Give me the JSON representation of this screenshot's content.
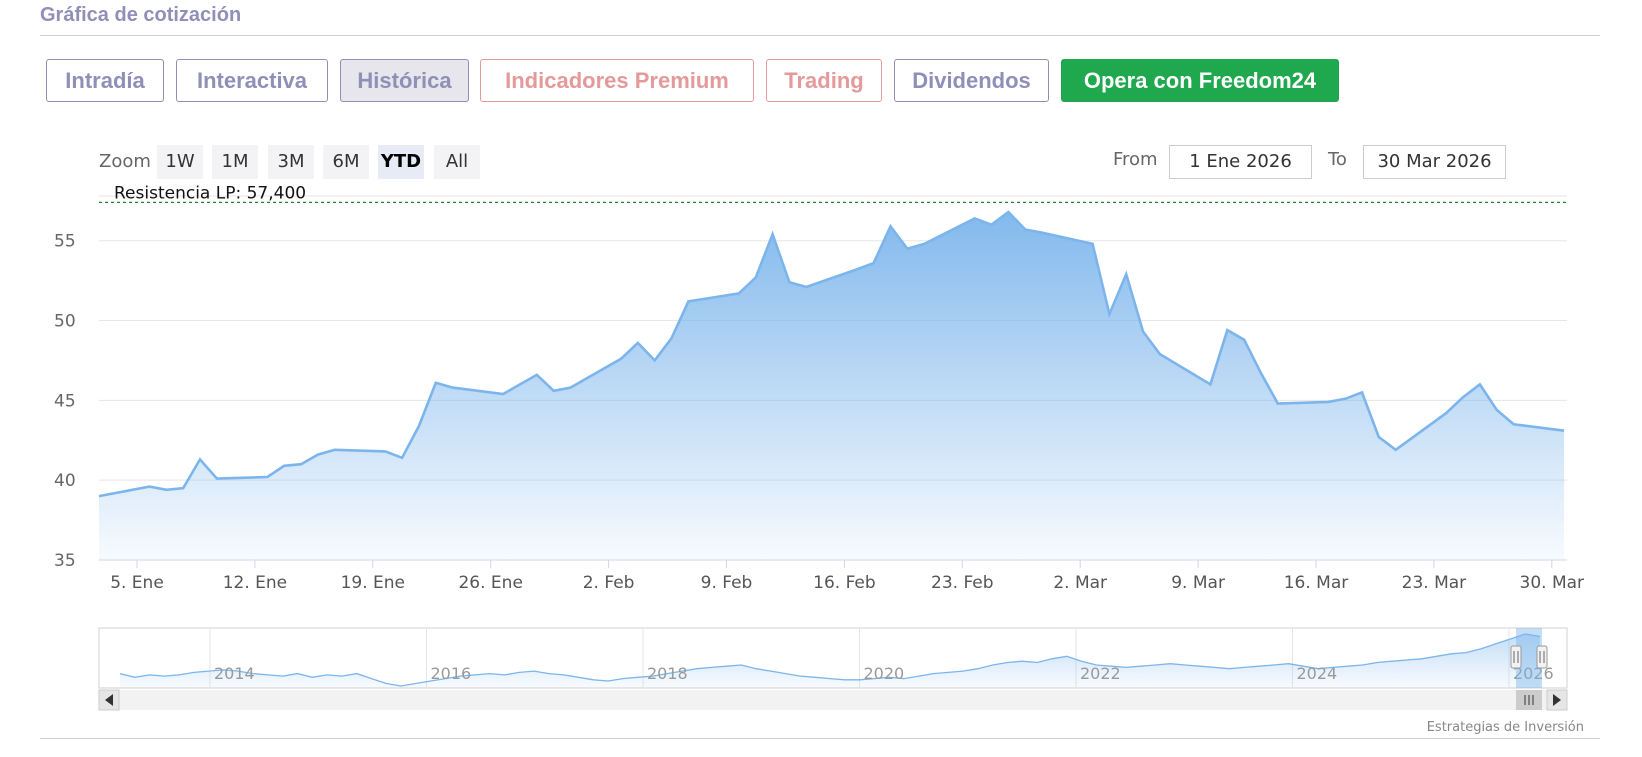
{
  "header": {
    "title": "Gráfica de cotización"
  },
  "tabs": [
    {
      "label": "Intradía",
      "style": "normal"
    },
    {
      "label": "Interactiva",
      "style": "normal"
    },
    {
      "label": "Histórica",
      "style": "active"
    },
    {
      "label": "Indicadores Premium",
      "style": "red"
    },
    {
      "label": "Trading",
      "style": "red"
    },
    {
      "label": "Dividendos",
      "style": "normal"
    },
    {
      "label": "Opera con Freedom24",
      "style": "green"
    }
  ],
  "range_selector": {
    "zoom_label": "Zoom",
    "buttons": [
      "1W",
      "1M",
      "3M",
      "6M",
      "YTD",
      "All"
    ],
    "selected": "YTD",
    "from_label": "From",
    "from_value": "1 Ene 2026",
    "to_label": "To",
    "to_value": "30 Mar 2026"
  },
  "credit": "Estrategias de Inversión",
  "colors": {
    "accent": "#8f8fb8",
    "premium": "#e49a9a",
    "cta": "#1fa84e",
    "series": "#7cb5ec",
    "resistance": "#2e7d32"
  },
  "chart_data": {
    "type": "area",
    "title": "",
    "xlabel": "",
    "ylabel": "",
    "ylim": [
      35,
      57.8
    ],
    "yticks": [
      35,
      40,
      45,
      50,
      55
    ],
    "x_ticks": [
      "5. Ene",
      "12. Ene",
      "19. Ene",
      "26. Ene",
      "2. Feb",
      "9. Feb",
      "16. Feb",
      "23. Feb",
      "2. Mar",
      "9. Mar",
      "16. Mar",
      "23. Mar",
      "30. Mar"
    ],
    "grid": true,
    "resistance": {
      "label": "Resistencia LP: 57,400",
      "value": 57.4
    },
    "series": [
      {
        "x": [
          "2026-01-02",
          "2026-01-05",
          "2026-01-06",
          "2026-01-07",
          "2026-01-08",
          "2026-01-09",
          "2026-01-12",
          "2026-01-13",
          "2026-01-14",
          "2026-01-15",
          "2026-01-16",
          "2026-01-19",
          "2026-01-20",
          "2026-01-21",
          "2026-01-22",
          "2026-01-23",
          "2026-01-26",
          "2026-01-27",
          "2026-01-28",
          "2026-01-29",
          "2026-01-30",
          "2026-02-02",
          "2026-02-03",
          "2026-02-04",
          "2026-02-05",
          "2026-02-06",
          "2026-02-09",
          "2026-02-10",
          "2026-02-11",
          "2026-02-12",
          "2026-02-13",
          "2026-02-16",
          "2026-02-17",
          "2026-02-18",
          "2026-02-19",
          "2026-02-20",
          "2026-02-23",
          "2026-02-24",
          "2026-02-25",
          "2026-02-26",
          "2026-02-27",
          "2026-03-02",
          "2026-03-03",
          "2026-03-04",
          "2026-03-05",
          "2026-03-06",
          "2026-03-09",
          "2026-03-10",
          "2026-03-11",
          "2026-03-12",
          "2026-03-13",
          "2026-03-16",
          "2026-03-17",
          "2026-03-18",
          "2026-03-19",
          "2026-03-20",
          "2026-03-23",
          "2026-03-24",
          "2026-03-25",
          "2026-03-26",
          "2026-03-27",
          "2026-03-30"
        ],
        "values": [
          39.0,
          39.6,
          39.4,
          39.5,
          41.3,
          40.1,
          40.2,
          40.9,
          41.0,
          41.6,
          41.9,
          41.8,
          41.4,
          43.4,
          46.1,
          45.8,
          45.4,
          46.0,
          46.6,
          45.6,
          45.8,
          47.6,
          48.6,
          47.5,
          48.9,
          51.2,
          51.7,
          52.7,
          55.4,
          52.4,
          52.1,
          53.2,
          53.6,
          55.9,
          54.5,
          54.8,
          56.4,
          56.0,
          56.8,
          55.7,
          55.5,
          54.8,
          50.4,
          52.9,
          49.3,
          47.9,
          46.0,
          49.4,
          48.8,
          46.7,
          44.8,
          44.9,
          45.1,
          45.5,
          42.7,
          41.9,
          44.2,
          45.2,
          46.0,
          44.4,
          43.5,
          43.1
        ]
      }
    ]
  },
  "navigator": {
    "year_labels": [
      "2014",
      "2016",
      "2018",
      "2020",
      "2022",
      "2024",
      "2026"
    ],
    "values": [
      38,
      35,
      37,
      36,
      37,
      39,
      40,
      41,
      40,
      38,
      37,
      36,
      38,
      35,
      37,
      36,
      38,
      34,
      30,
      28,
      30,
      32,
      34,
      36,
      37,
      38,
      37,
      39,
      40,
      38,
      37,
      35,
      33,
      32,
      34,
      35,
      36,
      38,
      40,
      42,
      43,
      44,
      45,
      42,
      40,
      38,
      36,
      35,
      34,
      33,
      33,
      34,
      35,
      34,
      36,
      38,
      39,
      40,
      42,
      45,
      47,
      48,
      47,
      50,
      52,
      48,
      45,
      44,
      43,
      44,
      45,
      46,
      45,
      44,
      43,
      42,
      43,
      44,
      45,
      46,
      44,
      42,
      43,
      44,
      45,
      47,
      48,
      49,
      50,
      52,
      54,
      55,
      58,
      62,
      66,
      70,
      68
    ]
  }
}
